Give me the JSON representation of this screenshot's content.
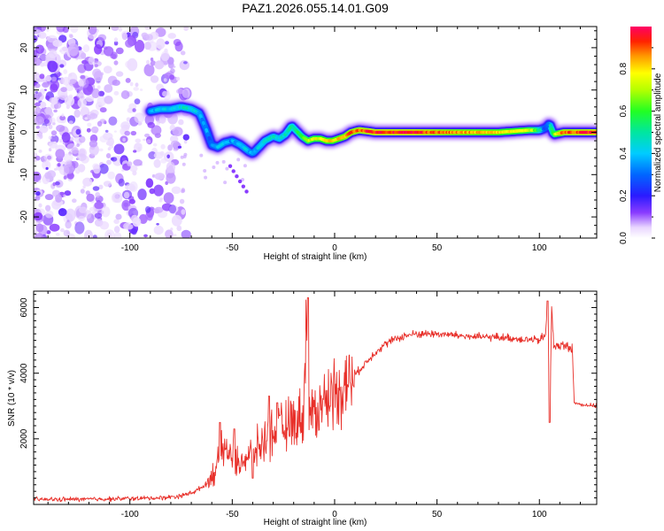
{
  "title": "PAZ1.2026.055.14.01.G09",
  "chart_data": [
    {
      "type": "heatmap",
      "title": "PAZ1.2026.055.14.01.G09",
      "xlabel": "Height of straight line (km)",
      "ylabel": "Frequency (Hz)",
      "xlim": [
        -147,
        128
      ],
      "ylim": [
        -25,
        25
      ],
      "xticks": [
        -100,
        -50,
        0,
        50,
        100
      ],
      "yticks": [
        -20,
        -10,
        0,
        10,
        20
      ],
      "xtick_labels": [
        "-100",
        "-50",
        "0",
        "50",
        "100"
      ],
      "ytick_labels": [
        "-20",
        "-10",
        "0",
        "10",
        "20"
      ],
      "noise_region_x": [
        -147,
        -80
      ],
      "ridge": {
        "x": [
          -90,
          -85,
          -80,
          -75,
          -70,
          -66,
          -63,
          -60,
          -57,
          -54,
          -50,
          -46,
          -42,
          -40,
          -37,
          -34,
          -30,
          -27,
          -24,
          -21,
          -19,
          -16,
          -13,
          -10,
          -7,
          -4,
          -1,
          2,
          5,
          8,
          12,
          20,
          40,
          60,
          80,
          95,
          100,
          103,
          105,
          107,
          112,
          128
        ],
        "y": [
          5,
          5.5,
          5.5,
          6,
          5.5,
          4.5,
          1,
          -3,
          -3.5,
          -2.5,
          -2,
          -3,
          -4.5,
          -5,
          -3.5,
          -2,
          -1,
          -1.5,
          -0.5,
          1.5,
          0.5,
          -1,
          -2,
          -1.5,
          -1.5,
          -2,
          -2,
          -1.5,
          -1,
          0,
          0.5,
          0,
          0,
          0,
          0,
          0.5,
          0.5,
          1,
          2,
          -0.5,
          0,
          0
        ],
        "amplitude": [
          0.35,
          0.4,
          0.4,
          0.45,
          0.45,
          0.4,
          0.35,
          0.3,
          0.35,
          0.4,
          0.35,
          0.4,
          0.4,
          0.35,
          0.4,
          0.45,
          0.45,
          0.45,
          0.45,
          0.5,
          0.5,
          0.55,
          0.7,
          0.75,
          0.75,
          0.8,
          0.8,
          0.8,
          0.85,
          0.9,
          0.9,
          0.95,
          0.95,
          0.85,
          0.8,
          0.75,
          0.6,
          0.3,
          0.3,
          0.6,
          0.9,
          0.95
        ]
      },
      "colorbar": {
        "label": "Normalized spectral amplitude",
        "range": [
          0,
          1
        ],
        "ticks": [
          0.0,
          0.2,
          0.4,
          0.6,
          0.8
        ],
        "tick_labels": [
          "0.0",
          "0.2",
          "0.4",
          "0.6",
          "0.8"
        ],
        "colormap": "rainbow (purple to red)"
      }
    },
    {
      "type": "line",
      "xlabel": "Height of straight line (km)",
      "ylabel": "SNR (10 * v/v)",
      "xlim": [
        -147,
        128
      ],
      "ylim": [
        0,
        6500
      ],
      "xticks": [
        -100,
        -50,
        0,
        50,
        100
      ],
      "yticks": [
        2000,
        4000,
        6000
      ],
      "xtick_labels": [
        "-100",
        "-50",
        "0",
        "50",
        "100"
      ],
      "ytick_labels": [
        "2000",
        "4000",
        "6000"
      ],
      "series": [
        {
          "name": "SNR",
          "color": "#e8302a",
          "x": [
            -147,
            -120,
            -100,
            -85,
            -75,
            -68,
            -62,
            -58,
            -55,
            -52,
            -48,
            -45,
            -42,
            -38,
            -34,
            -30,
            -26,
            -22,
            -18,
            -15,
            -14,
            -13,
            -12,
            -8,
            -4,
            0,
            5,
            10,
            15,
            20,
            25,
            30,
            35,
            40,
            50,
            60,
            70,
            80,
            90,
            100,
            103,
            104,
            105,
            106,
            107,
            110,
            115,
            116,
            117,
            120,
            128
          ],
          "values": [
            150,
            160,
            180,
            200,
            260,
            400,
            650,
            1100,
            1700,
            1600,
            1250,
            1350,
            1500,
            1700,
            1950,
            2150,
            2300,
            2450,
            2600,
            2750,
            6300,
            2800,
            2700,
            2950,
            3200,
            3450,
            3650,
            3950,
            4300,
            4650,
            4900,
            5050,
            5150,
            5200,
            5200,
            5150,
            5100,
            5100,
            5050,
            5000,
            5150,
            6200,
            2500,
            6000,
            4800,
            4850,
            4800,
            4800,
            3100,
            3050,
            3000
          ],
          "spikes": [
            {
              "x": -56,
              "value": 2500
            },
            {
              "x": -49,
              "value": 2300
            },
            {
              "x": -40,
              "value": 800
            },
            {
              "x": -32,
              "value": 3300
            },
            {
              "x": -28,
              "value": 3100
            },
            {
              "x": -13,
              "value": 6300
            },
            {
              "x": 104,
              "value": 6200
            },
            {
              "x": 105,
              "value": 2500
            }
          ]
        }
      ]
    }
  ]
}
